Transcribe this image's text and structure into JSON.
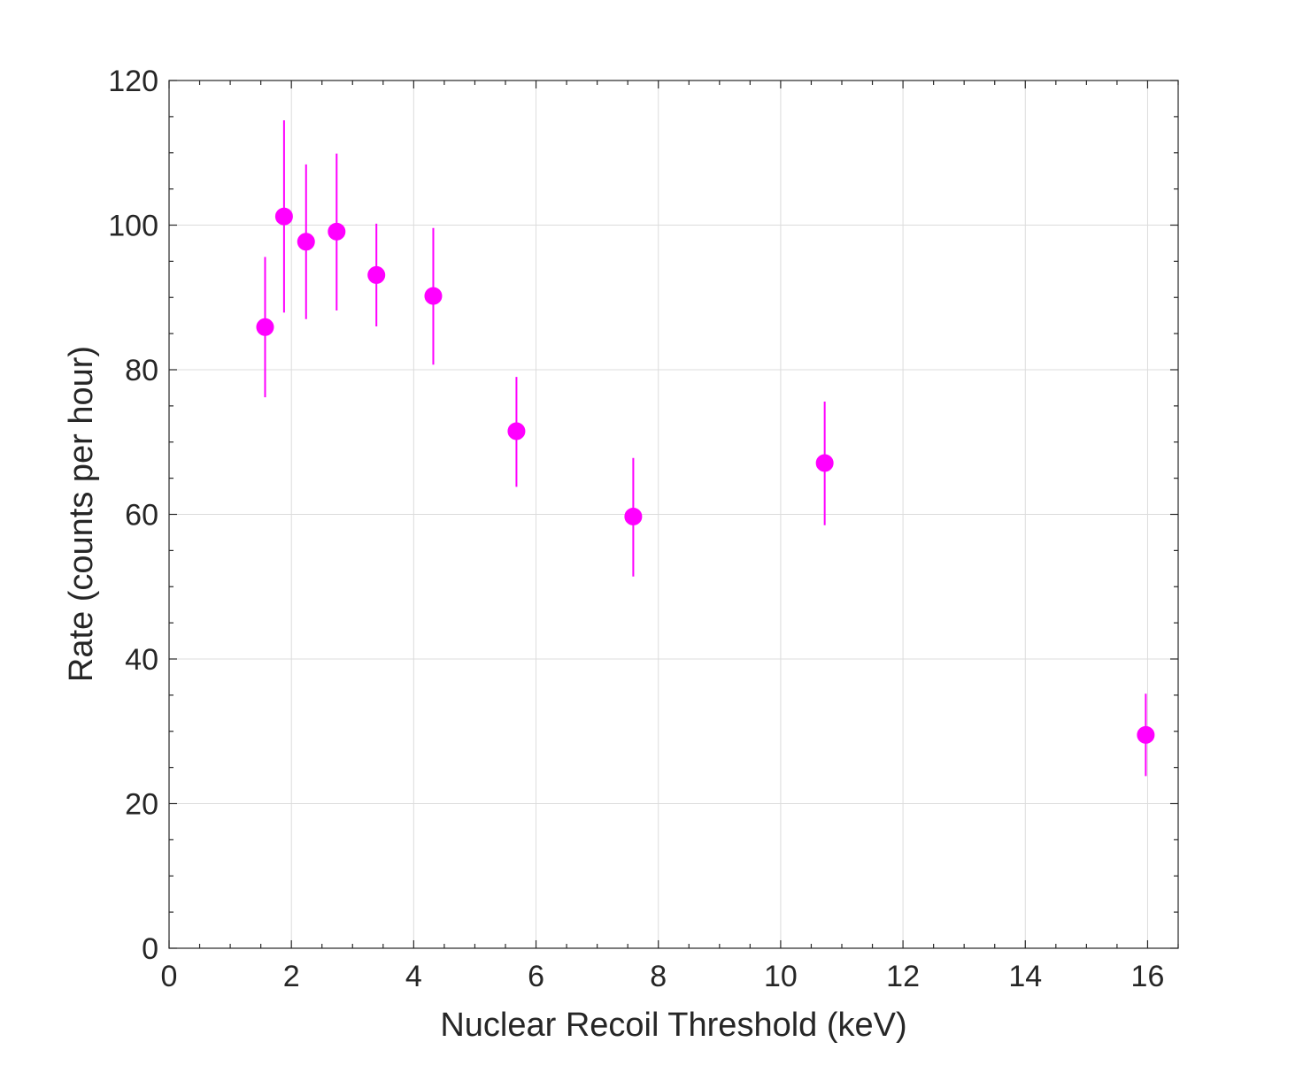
{
  "chart_data": {
    "type": "scatter",
    "title": "",
    "xlabel": "Nuclear Recoil Threshold (keV)",
    "ylabel": "Rate (counts per hour)",
    "xlim": [
      0,
      16.5
    ],
    "ylim": [
      0,
      120
    ],
    "xticks": [
      0,
      2,
      4,
      6,
      8,
      10,
      12,
      14,
      16
    ],
    "xtick_labels": [
      "0",
      "2",
      "4",
      "6",
      "8",
      "10",
      "12",
      "14",
      "16"
    ],
    "yticks": [
      0,
      20,
      40,
      60,
      80,
      100,
      120
    ],
    "ytick_labels": [
      "0",
      "20",
      "40",
      "60",
      "80",
      "100",
      "120"
    ],
    "x_minor_step": 0.5,
    "y_minor_step": 5,
    "grid": true,
    "box": true,
    "legend": "none",
    "series": [
      {
        "color": "#ff00ff",
        "marker": "filled-circle",
        "errorbars": true,
        "points": [
          {
            "x": 1.57,
            "y": 85.9,
            "ylow": 76.2,
            "yhigh": 95.6
          },
          {
            "x": 1.88,
            "y": 101.2,
            "ylow": 87.9,
            "yhigh": 114.5
          },
          {
            "x": 2.24,
            "y": 97.7,
            "ylow": 87.0,
            "yhigh": 108.4
          },
          {
            "x": 2.74,
            "y": 99.1,
            "ylow": 88.2,
            "yhigh": 109.9
          },
          {
            "x": 3.39,
            "y": 93.1,
            "ylow": 86.0,
            "yhigh": 100.2
          },
          {
            "x": 4.32,
            "y": 90.2,
            "ylow": 80.7,
            "yhigh": 99.6
          },
          {
            "x": 5.68,
            "y": 71.5,
            "ylow": 63.8,
            "yhigh": 79.0
          },
          {
            "x": 7.59,
            "y": 59.7,
            "ylow": 51.4,
            "yhigh": 67.8
          },
          {
            "x": 10.72,
            "y": 67.1,
            "ylow": 58.5,
            "yhigh": 75.6
          },
          {
            "x": 15.97,
            "y": 29.5,
            "ylow": 23.8,
            "yhigh": 35.2
          }
        ]
      }
    ]
  }
}
